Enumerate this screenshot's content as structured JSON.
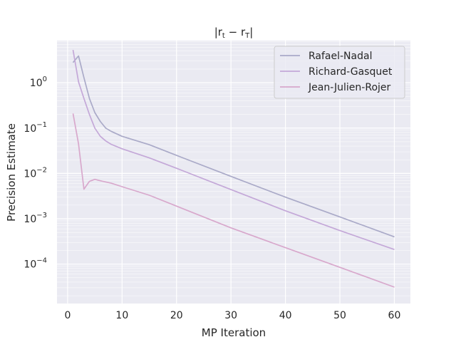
{
  "chart_data": {
    "type": "line",
    "title_base": "|r",
    "title_sub1": "t",
    "title_mid": " − r",
    "title_sub2": "T",
    "title_end": "|",
    "xlabel": "MP Iteration",
    "ylabel": "Precision Estimate",
    "xlim": [
      -1.95,
      62.95
    ],
    "ylim": [
      1.35e-05,
      8.5
    ],
    "yscale": "log",
    "grid": true,
    "legend_position": "top-right",
    "x_ticks": [
      0,
      10,
      20,
      30,
      40,
      50,
      60
    ],
    "x_tick_labels": [
      "0",
      "10",
      "20",
      "30",
      "40",
      "50",
      "60"
    ],
    "y_ticks": [
      0.0001,
      0.001,
      0.01,
      0.1,
      1
    ],
    "y_tick_labels": [
      {
        "base": "10",
        "exp": "−4"
      },
      {
        "base": "10",
        "exp": "−3"
      },
      {
        "base": "10",
        "exp": "−2"
      },
      {
        "base": "10",
        "exp": "−1"
      },
      {
        "base": "10",
        "exp": "0"
      }
    ],
    "series": [
      {
        "name": "Rafael-Nadal",
        "color": "#aaaac8",
        "points": [
          [
            1,
            2.8
          ],
          [
            2,
            3.9
          ],
          [
            3,
            1.3
          ],
          [
            4,
            0.45
          ],
          [
            5,
            0.22
          ],
          [
            6,
            0.14
          ],
          [
            7,
            0.1
          ],
          [
            8,
            0.085
          ],
          [
            10,
            0.066
          ],
          [
            15,
            0.043
          ],
          [
            20,
            0.025
          ],
          [
            30,
            0.0086
          ],
          [
            40,
            0.003
          ],
          [
            50,
            0.0011
          ],
          [
            60,
            0.0004
          ]
        ]
      },
      {
        "name": "Richard-Gasquet",
        "color": "#c4a8d8",
        "points": [
          [
            1,
            5.3
          ],
          [
            2,
            1.05
          ],
          [
            3,
            0.45
          ],
          [
            4,
            0.2
          ],
          [
            5,
            0.1
          ],
          [
            6,
            0.066
          ],
          [
            7,
            0.052
          ],
          [
            8,
            0.044
          ],
          [
            10,
            0.035
          ],
          [
            15,
            0.022
          ],
          [
            20,
            0.013
          ],
          [
            30,
            0.0044
          ],
          [
            40,
            0.0015
          ],
          [
            50,
            0.00055
          ],
          [
            60,
            0.00021
          ]
        ]
      },
      {
        "name": "Jean-Julien-Rojer",
        "color": "#d8a8cc",
        "points": [
          [
            1,
            0.21
          ],
          [
            2,
            0.045
          ],
          [
            3,
            0.0045
          ],
          [
            4,
            0.0067
          ],
          [
            5,
            0.0074
          ],
          [
            6,
            0.0069
          ],
          [
            8,
            0.0061
          ],
          [
            10,
            0.0051
          ],
          [
            15,
            0.0033
          ],
          [
            20,
            0.0019
          ],
          [
            30,
            0.00063
          ],
          [
            40,
            0.00023
          ],
          [
            50,
            8.5e-05
          ],
          [
            60,
            3.1e-05
          ]
        ]
      }
    ]
  }
}
